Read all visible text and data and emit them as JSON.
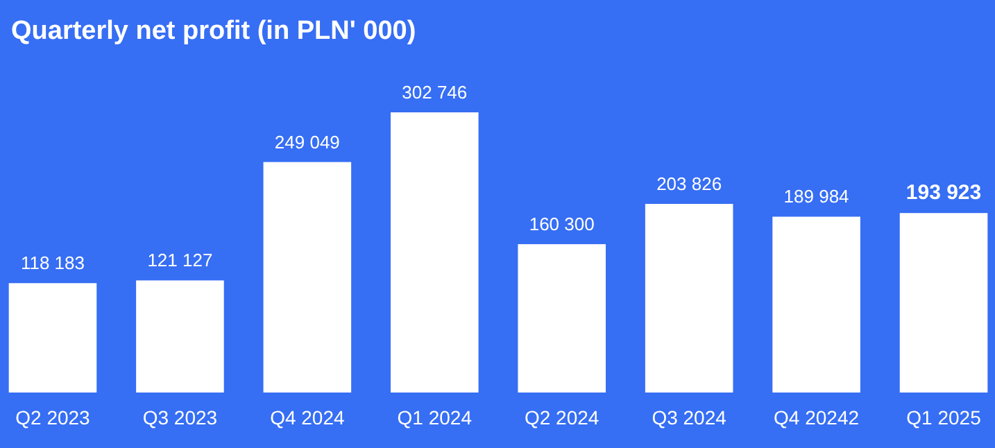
{
  "chart_data": {
    "type": "bar",
    "title": "Quarterly net profit (in PLN' 000)",
    "categories": [
      "Q2 2023",
      "Q3 2023",
      "Q4 2024",
      "Q1 2024",
      "Q2 2024",
      "Q3 2024",
      "Q4 20242",
      "Q1 2025"
    ],
    "values": [
      118183,
      121127,
      249049,
      302746,
      160300,
      203826,
      189984,
      193923
    ],
    "value_labels": [
      "118 183",
      "121 127",
      "249 049",
      "302 746",
      "160 300",
      "203 826",
      "189 984",
      "193 923"
    ],
    "color": "#ffffff"
  }
}
